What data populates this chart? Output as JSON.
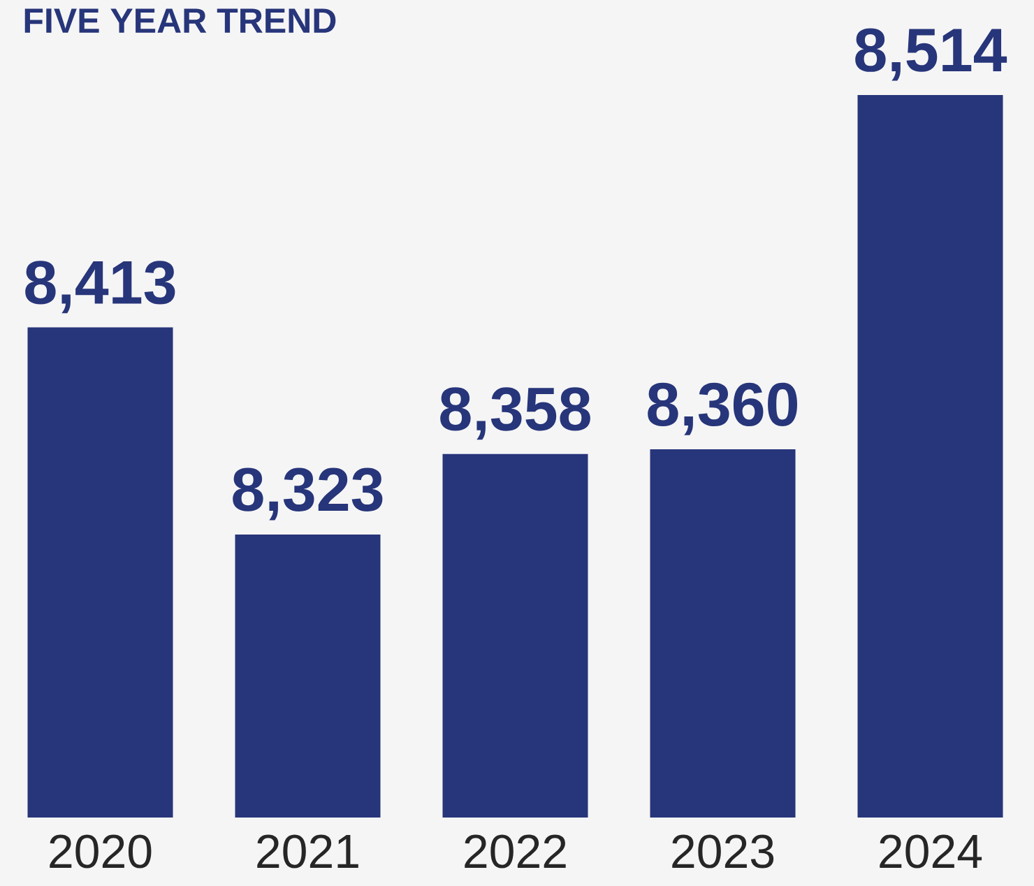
{
  "chart_data": {
    "type": "bar",
    "title": "FIVE YEAR TREND",
    "categories": [
      "2020",
      "2021",
      "2022",
      "2023",
      "2024"
    ],
    "values": [
      8413,
      8323,
      8358,
      8360,
      8514
    ],
    "value_labels": [
      "8,413",
      "8,323",
      "8,358",
      "8,360",
      "8,514"
    ],
    "color": "#27357a",
    "ylim": [
      8200,
      8514
    ],
    "grid": false
  }
}
